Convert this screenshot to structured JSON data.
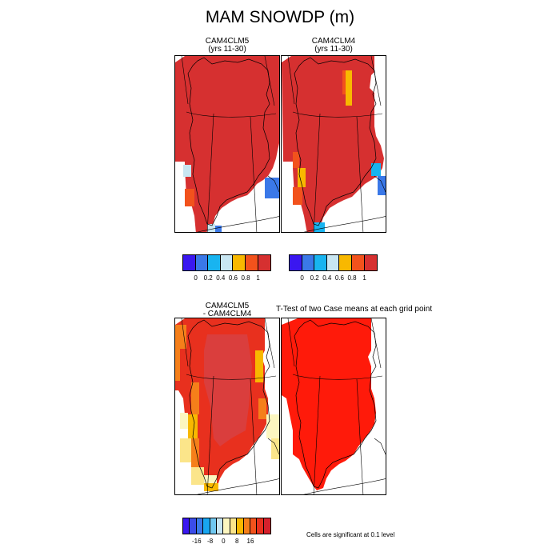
{
  "figure": {
    "title": "MAM SNOWDP (m)"
  },
  "panels": [
    {
      "id": "cam4clm5",
      "title_line1": "CAM4CLM5",
      "title_line2": "(yrs 11-30)"
    },
    {
      "id": "cam4clm4",
      "title_line1": "CAM4CLM4",
      "title_line2": "(yrs 11-30)"
    },
    {
      "id": "diff",
      "title_line1": "CAM4CLM5",
      "title_line2": "- CAM4CLM4"
    },
    {
      "id": "ttest",
      "title_line1": "T-Test of two Case means at each grid point",
      "title_line2": ""
    }
  ],
  "colorbar_top": {
    "colors": [
      "#3a17f0",
      "#3a78e8",
      "#18b4f0",
      "#c8e6f2",
      "#f8b800",
      "#f2521c",
      "#d63030"
    ],
    "labels": [
      "0",
      "0.2",
      "0.4",
      "0.6",
      "0.8",
      "1"
    ]
  },
  "colorbar_diff": {
    "colors": [
      "#3a17f0",
      "#3b4ce8",
      "#3a78e8",
      "#18a6f0",
      "#70c8f0",
      "#c8e6f2",
      "#fcf6c0",
      "#fbe58a",
      "#f8b800",
      "#f57f1a",
      "#f2521c",
      "#e8301e",
      "#d6202c"
    ],
    "labels": [
      "-16",
      "-8",
      "0",
      "8",
      "16"
    ]
  },
  "significance_note": "Cells are significant at 0.1 level",
  "colors": {
    "snow_deep": "#d63030",
    "signif": "#ff1a0a"
  }
}
